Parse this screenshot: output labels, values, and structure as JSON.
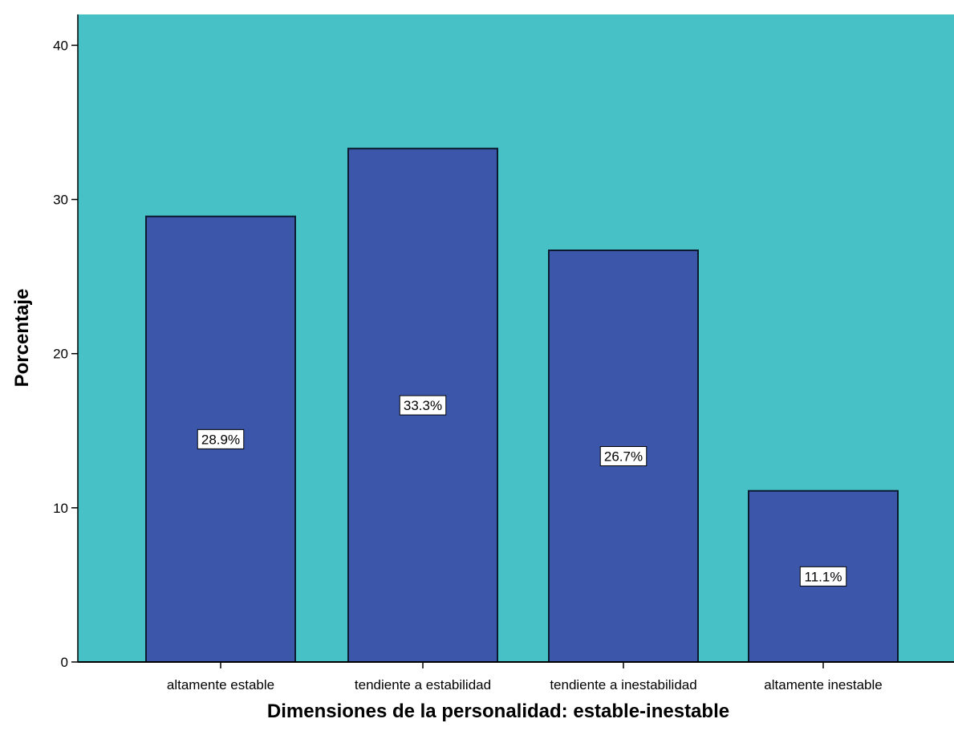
{
  "chart_data": {
    "type": "bar",
    "title": "",
    "xlabel": "Dimensiones de la personalidad: estable-inestable",
    "ylabel": "Porcentaje",
    "categories": [
      "altamente estable",
      "tendiente a estabilidad",
      "tendiente a inestabilidad",
      "altamente inestable"
    ],
    "values": [
      28.9,
      33.3,
      26.7,
      11.1
    ],
    "data_labels": [
      "28.9%",
      "33.3%",
      "26.7%",
      "11.1%"
    ],
    "yticks": [
      "0",
      "10",
      "20",
      "30",
      "40"
    ],
    "ylim": [
      0,
      42
    ],
    "grid": false,
    "legend": "none",
    "colors": {
      "plot_background": "#47C1C6",
      "bar_fill": "#3C56AA",
      "bar_stroke": "#0B1A2E",
      "axis": "#000000",
      "label_box": "#ffffff"
    }
  }
}
